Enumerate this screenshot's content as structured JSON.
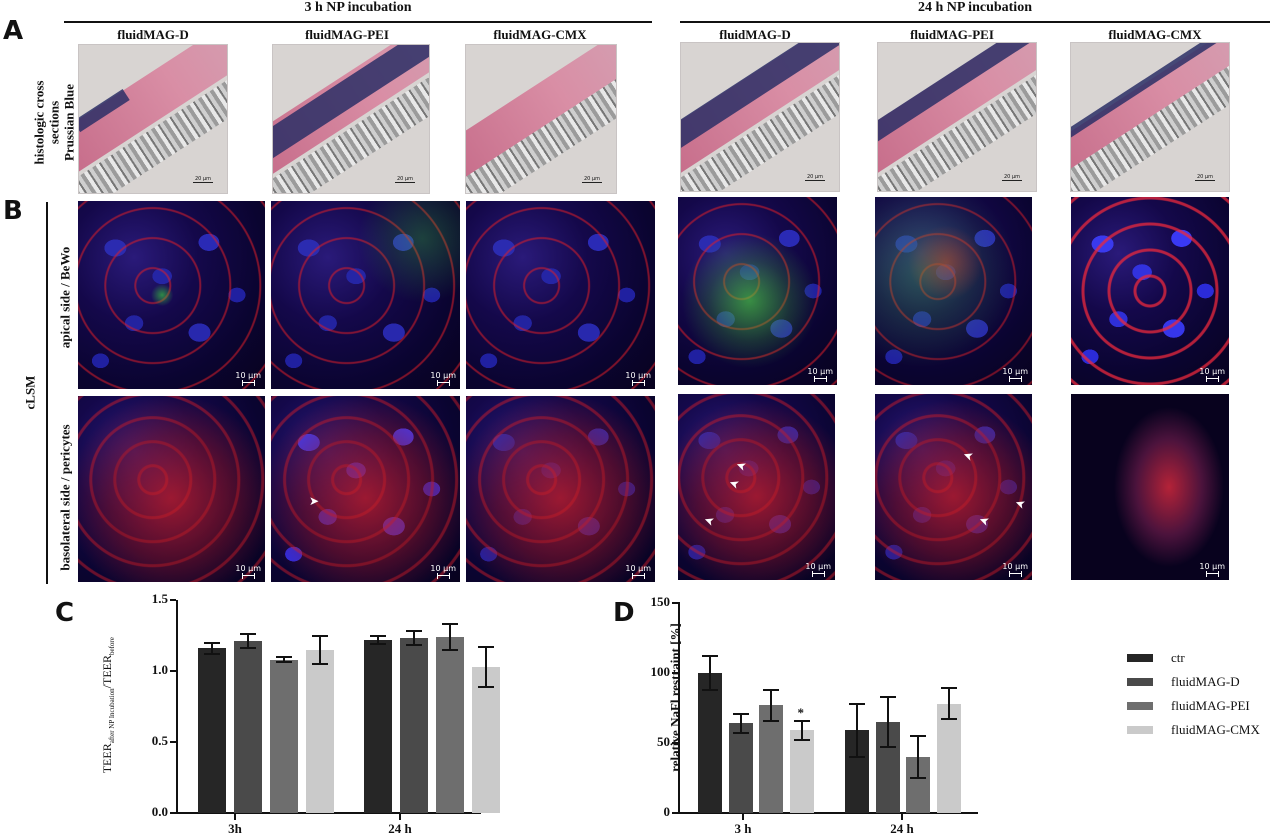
{
  "panel_labels": {
    "a": "A",
    "b": "B",
    "c": "C",
    "d": "D"
  },
  "panel_a": {
    "groups": [
      {
        "title": "3 h NP incubation",
        "columns": [
          "fluidMAG-D",
          "fluidMAG-PEI",
          "fluidMAG-CMX"
        ]
      },
      {
        "title": "24 h NP incubation",
        "columns": [
          "fluidMAG-D",
          "fluidMAG-PEI",
          "fluidMAG-CMX"
        ]
      }
    ],
    "row_label_line1": "histologic cross",
    "row_label_line2": "sections",
    "row_label_line3": "Prussian Blue",
    "scale_bar": "20 µm"
  },
  "panel_b": {
    "method_label": "cLSM",
    "rows": [
      "apical side / BeWo",
      "basolateral side / pericytes"
    ],
    "scale_bar": "10 µm",
    "arrow_glyph": "➤"
  },
  "chart_data": [
    {
      "panel": "C",
      "type": "bar",
      "title": "",
      "xlabel": "",
      "ylabel": "TEER after NP Incubation / TEER before",
      "ylabel_main": "TEER",
      "ylabel_sub1": "after NP Incubation",
      "ylabel_mid": "/TEER",
      "ylabel_sub2": "before",
      "categories": [
        "3h",
        "24 h"
      ],
      "ylim": [
        0,
        1.5
      ],
      "yticks": [
        "0.0",
        "0.5",
        "1.0",
        "1.5"
      ],
      "grid": false,
      "series": [
        {
          "name": "ctr",
          "color": "#262626",
          "values": [
            1.16,
            1.22
          ],
          "errors": [
            0.04,
            0.03
          ]
        },
        {
          "name": "fluidMAG-D",
          "color": "#4a4a4a",
          "values": [
            1.21,
            1.23
          ],
          "errors": [
            0.05,
            0.05
          ]
        },
        {
          "name": "fluidMAG-PEI",
          "color": "#6e6e6e",
          "values": [
            1.08,
            1.24
          ],
          "errors": [
            0.02,
            0.09
          ]
        },
        {
          "name": "fluidMAG-CMX",
          "color": "#cacaca",
          "values": [
            1.15,
            1.03
          ],
          "errors": [
            0.1,
            0.14
          ]
        }
      ]
    },
    {
      "panel": "D",
      "type": "bar",
      "title": "",
      "xlabel": "",
      "ylabel": "relative NaFl restraint [%]",
      "categories": [
        "3 h",
        "24 h"
      ],
      "ylim": [
        0,
        150
      ],
      "yticks": [
        "0",
        "50",
        "100",
        "150"
      ],
      "grid": false,
      "legend_position": "right",
      "annotations": [
        {
          "text": "*",
          "category": "3 h",
          "series": "fluidMAG-CMX"
        }
      ],
      "series": [
        {
          "name": "ctr",
          "color": "#262626",
          "values": [
            100,
            59
          ],
          "errors": [
            12,
            19
          ]
        },
        {
          "name": "fluidMAG-D",
          "color": "#4a4a4a",
          "values": [
            64,
            65
          ],
          "errors": [
            7,
            18
          ]
        },
        {
          "name": "fluidMAG-PEI",
          "color": "#6e6e6e",
          "values": [
            77,
            40
          ],
          "errors": [
            11,
            15
          ]
        },
        {
          "name": "fluidMAG-CMX",
          "color": "#cacaca",
          "values": [
            59,
            78
          ],
          "errors": [
            7,
            11
          ]
        }
      ]
    }
  ],
  "legend": [
    {
      "label": "ctr",
      "color": "#262626"
    },
    {
      "label": "fluidMAG-D",
      "color": "#4a4a4a"
    },
    {
      "label": "fluidMAG-PEI",
      "color": "#6e6e6e"
    },
    {
      "label": "fluidMAG-CMX",
      "color": "#cacaca"
    }
  ]
}
